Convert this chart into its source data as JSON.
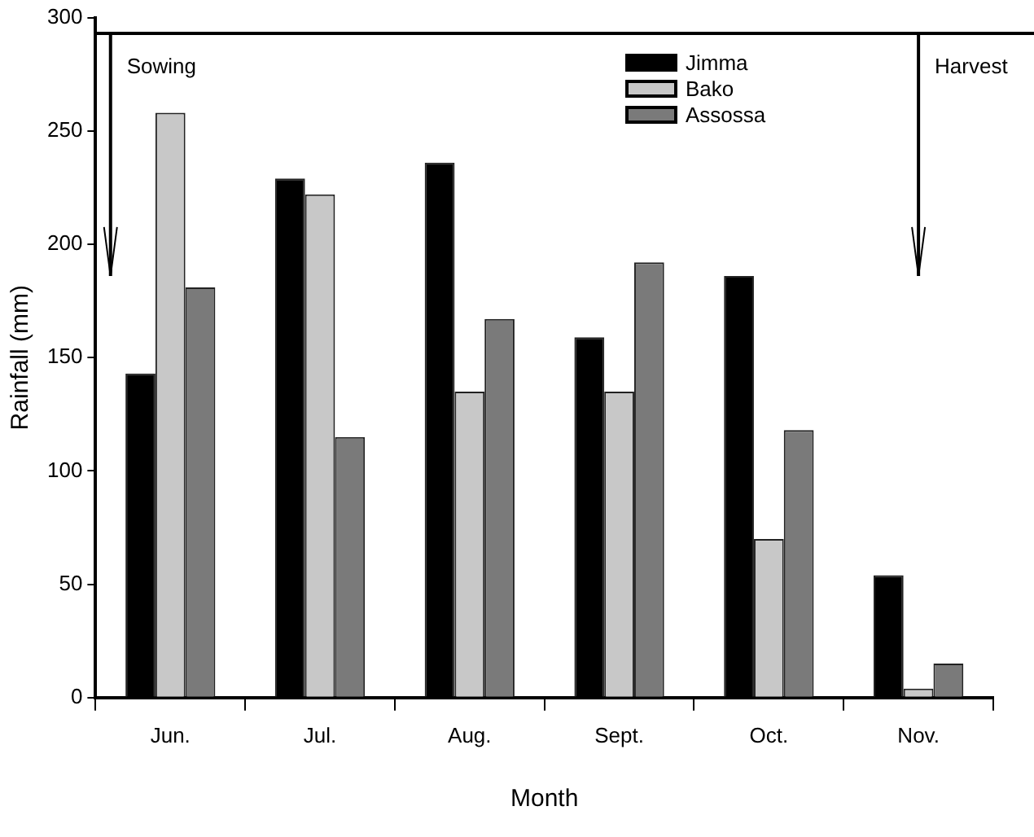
{
  "chart_data": {
    "type": "bar",
    "xlabel": "Month",
    "ylabel": "Rainfall (mm)",
    "categories": [
      "Jun.",
      "Jul.",
      "Aug.",
      "Sept.",
      "Oct.",
      "Nov."
    ],
    "series": [
      {
        "name": "Jimma",
        "color": "#000000",
        "values": [
          143,
          229,
          236,
          159,
          186,
          54
        ]
      },
      {
        "name": "Bako",
        "color": "#c8c8c8",
        "values": [
          258,
          222,
          135,
          135,
          70,
          4
        ]
      },
      {
        "name": "Assossa",
        "color": "#7a7a7a",
        "values": [
          181,
          115,
          167,
          192,
          118,
          15
        ]
      }
    ],
    "ref_lines": [
      {
        "axis": "y",
        "value": 293,
        "color": "#000000"
      }
    ],
    "ylim": [
      0,
      300
    ],
    "yticks": [
      0,
      50,
      100,
      150,
      200,
      250,
      300
    ],
    "grid": false,
    "legend": "top right",
    "annotations": [
      "Sowing",
      "Harvest"
    ]
  }
}
